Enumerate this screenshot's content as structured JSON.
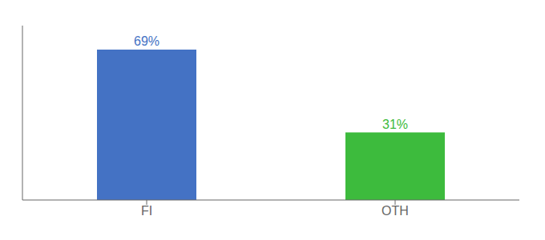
{
  "chart_data": {
    "type": "bar",
    "categories": [
      "FI",
      "OTH"
    ],
    "values": [
      69,
      31
    ],
    "value_labels": [
      "69%",
      "31%"
    ],
    "colors": [
      "#4472c4",
      "#3dbb3d"
    ],
    "ylim": [
      0,
      80
    ],
    "grid": false,
    "tick_labels": "x"
  }
}
